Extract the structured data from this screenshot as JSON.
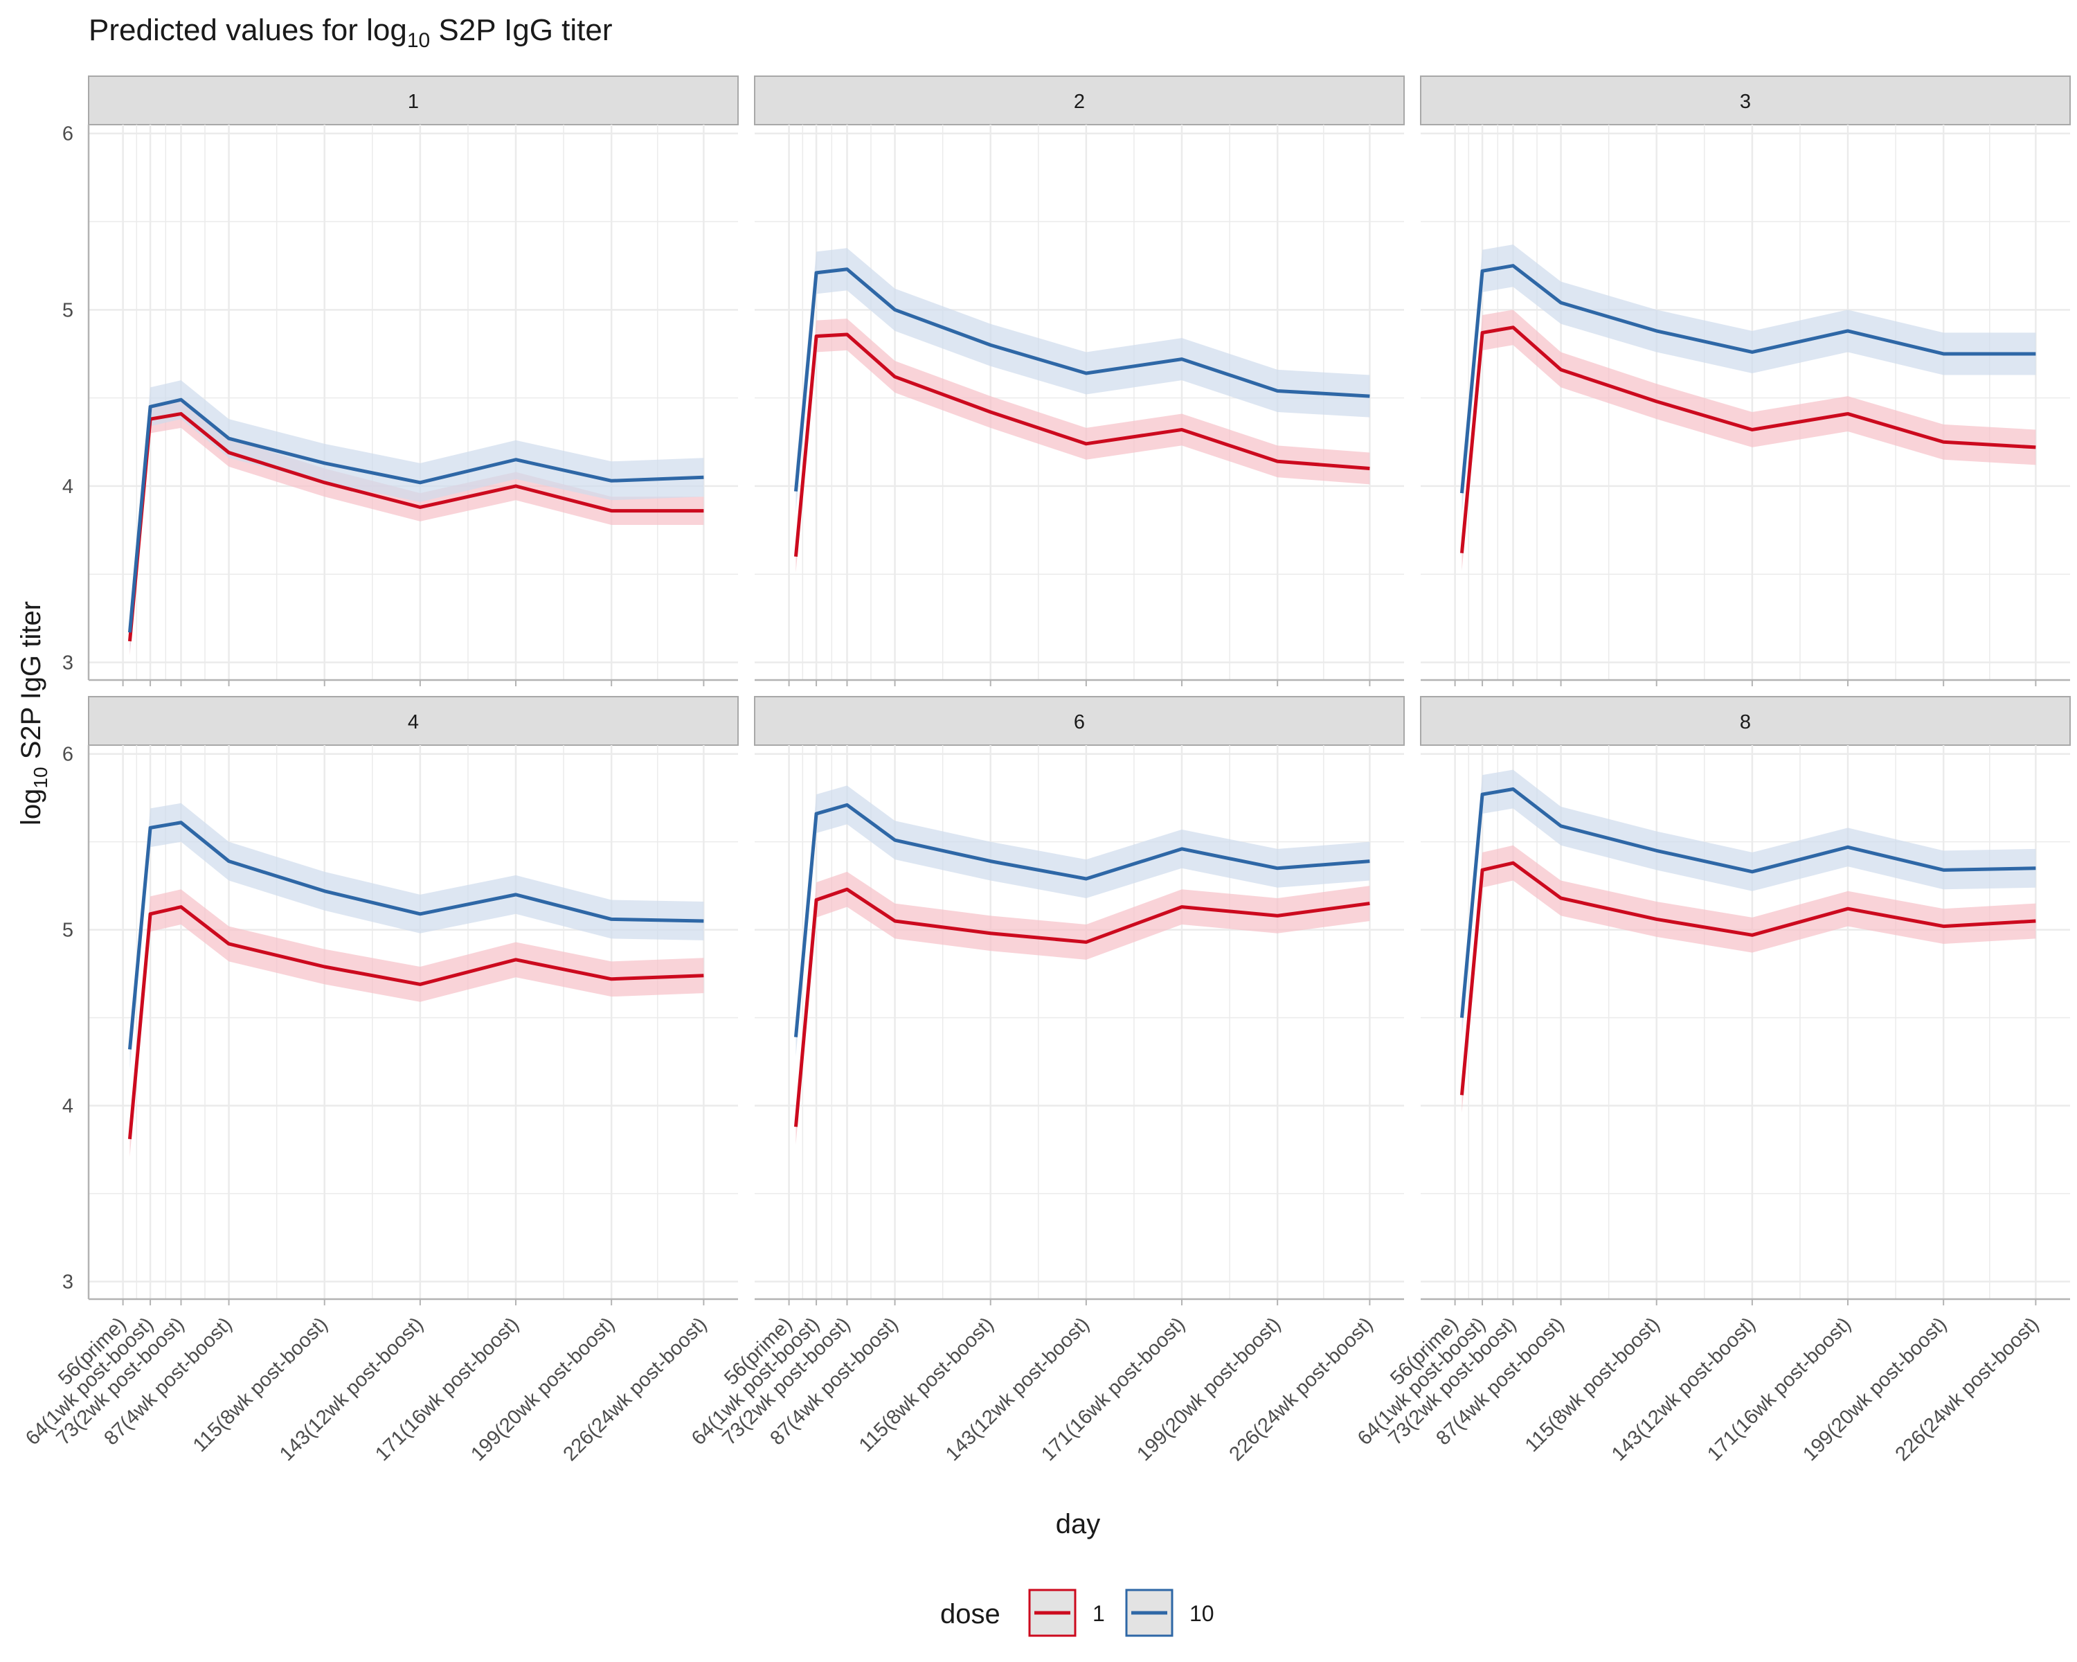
{
  "chart_data": {
    "type": "line",
    "title_main": "Predicted values for log",
    "title_sub": "10",
    "title_rest": " S2P IgG titer",
    "ylabel_main": "log",
    "ylabel_sub": "10",
    "ylabel_rest": " S2P IgG titer",
    "xlabel": "day",
    "ylim": [
      2.9,
      6.05
    ],
    "y_ticks": [
      3,
      4,
      5,
      6
    ],
    "x_categories": [
      "56(prime)",
      "64(1wk post-boost)",
      "73(2wk post-boost)",
      "87(4wk post-boost)",
      "115(8wk post-boost)",
      "143(12wk post-boost)",
      "171(16wk post-boost)",
      "199(20wk post-boost)",
      "226(24wk post-boost)"
    ],
    "x_values": [
      56,
      64,
      73,
      87,
      115,
      143,
      171,
      199,
      226
    ],
    "grid": true,
    "legend": {
      "title": "dose",
      "position": "bottom",
      "entries": [
        {
          "label": "1",
          "color": "#cc0a1e"
        },
        {
          "label": "10",
          "color": "#2e67a6"
        }
      ]
    },
    "colors": {
      "dose_1_line": "#cc0a1e",
      "dose_1_band": "#f7c1c7",
      "dose_10_line": "#2e67a6",
      "dose_10_band": "#cfdcec",
      "strip_fill": "#dedede",
      "strip_border": "#a8a8a8",
      "grid": "#ebebeb"
    },
    "panels": [
      {
        "label": "1",
        "series": [
          {
            "dose": "1",
            "x": [
              58,
              64,
              73,
              87,
              115,
              143,
              171,
              199,
              226
            ],
            "y": [
              3.12,
              4.38,
              4.41,
              4.19,
              4.02,
              3.88,
              4.0,
              3.86,
              3.86
            ],
            "band": 0.08
          },
          {
            "dose": "10",
            "x": [
              58,
              64,
              73,
              87,
              115,
              143,
              171,
              199,
              226
            ],
            "y": [
              3.17,
              4.45,
              4.49,
              4.27,
              4.13,
              4.02,
              4.15,
              4.03,
              4.05
            ],
            "band": 0.11
          }
        ]
      },
      {
        "label": "2",
        "series": [
          {
            "dose": "1",
            "x": [
              58,
              64,
              73,
              87,
              115,
              143,
              171,
              199,
              226
            ],
            "y": [
              3.6,
              4.85,
              4.86,
              4.62,
              4.42,
              4.24,
              4.32,
              4.14,
              4.1
            ],
            "band": 0.09
          },
          {
            "dose": "10",
            "x": [
              58,
              64,
              73,
              87,
              115,
              143,
              171,
              199,
              226
            ],
            "y": [
              3.97,
              5.21,
              5.23,
              5.0,
              4.8,
              4.64,
              4.72,
              4.54,
              4.51
            ],
            "band": 0.12
          }
        ]
      },
      {
        "label": "3",
        "series": [
          {
            "dose": "1",
            "x": [
              58,
              64,
              73,
              87,
              115,
              143,
              171,
              199,
              226
            ],
            "y": [
              3.62,
              4.87,
              4.9,
              4.66,
              4.48,
              4.32,
              4.41,
              4.25,
              4.22
            ],
            "band": 0.1
          },
          {
            "dose": "10",
            "x": [
              58,
              64,
              73,
              87,
              115,
              143,
              171,
              199,
              226
            ],
            "y": [
              3.96,
              5.22,
              5.25,
              5.04,
              4.88,
              4.76,
              4.88,
              4.75,
              4.75
            ],
            "band": 0.12
          }
        ]
      },
      {
        "label": "4",
        "series": [
          {
            "dose": "1",
            "x": [
              58,
              64,
              73,
              87,
              115,
              143,
              171,
              199,
              226
            ],
            "y": [
              3.81,
              5.09,
              5.13,
              4.92,
              4.79,
              4.69,
              4.83,
              4.72,
              4.74
            ],
            "band": 0.1
          },
          {
            "dose": "10",
            "x": [
              58,
              64,
              73,
              87,
              115,
              143,
              171,
              199,
              226
            ],
            "y": [
              4.32,
              5.58,
              5.61,
              5.39,
              5.22,
              5.09,
              5.2,
              5.06,
              5.05
            ],
            "band": 0.11
          }
        ]
      },
      {
        "label": "6",
        "series": [
          {
            "dose": "1",
            "x": [
              58,
              64,
              73,
              87,
              115,
              143,
              171,
              199,
              226
            ],
            "y": [
              3.88,
              5.17,
              5.23,
              5.05,
              4.98,
              4.93,
              5.13,
              5.08,
              5.15
            ],
            "band": 0.1
          },
          {
            "dose": "10",
            "x": [
              58,
              64,
              73,
              87,
              115,
              143,
              171,
              199,
              226
            ],
            "y": [
              4.39,
              5.66,
              5.71,
              5.51,
              5.39,
              5.29,
              5.46,
              5.35,
              5.39
            ],
            "band": 0.11
          }
        ]
      },
      {
        "label": "8",
        "series": [
          {
            "dose": "1",
            "x": [
              58,
              64,
              73,
              87,
              115,
              143,
              171,
              199,
              226
            ],
            "y": [
              4.06,
              5.34,
              5.38,
              5.18,
              5.06,
              4.97,
              5.12,
              5.02,
              5.05
            ],
            "band": 0.1
          },
          {
            "dose": "10",
            "x": [
              58,
              64,
              73,
              87,
              115,
              143,
              171,
              199,
              226
            ],
            "y": [
              4.5,
              5.77,
              5.8,
              5.59,
              5.45,
              5.33,
              5.47,
              5.34,
              5.35
            ],
            "band": 0.11
          }
        ]
      }
    ]
  }
}
